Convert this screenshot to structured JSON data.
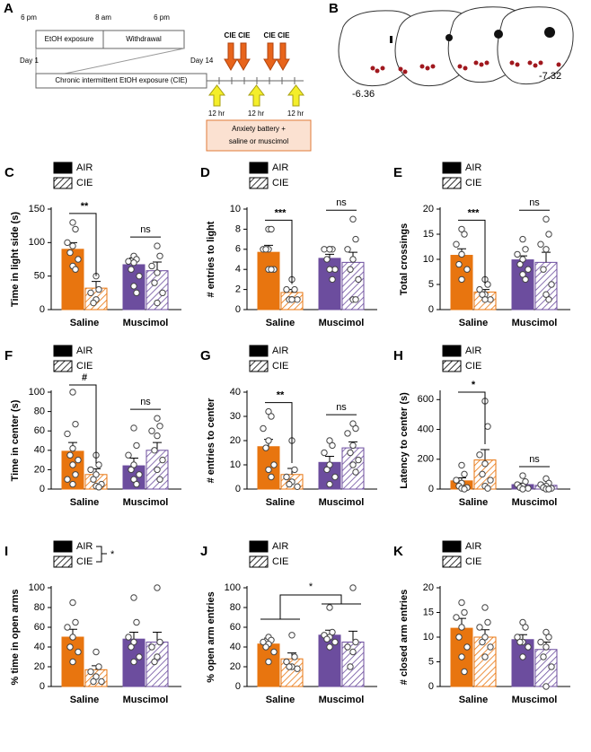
{
  "panel_a": {
    "letter": "A",
    "times": [
      "6 pm",
      "8 am",
      "6 pm"
    ],
    "phases": [
      "EtOH exposure",
      "Withdrawal"
    ],
    "day_start": "Day 1",
    "day_end": "Day 14",
    "cie_bar": "Chronic intermittent EtOH exposure (CIE)",
    "cie_labels": [
      "CIE CIE",
      "CIE CIE"
    ],
    "interval_labels": [
      "12 hr",
      "12 hr",
      "12 hr"
    ],
    "battery": [
      "Anxiety battery +",
      "saline or muscimol"
    ]
  },
  "panel_b": {
    "letter": "B",
    "coords": [
      "-6.36",
      "-7.32"
    ]
  },
  "chart_data": [
    {
      "type": "bar",
      "panel": "C",
      "ylabel": "Time in light side (s)",
      "categories": [
        "Saline",
        "Muscimol"
      ],
      "category_colors": [
        "#e8750f",
        "#6c4d9e"
      ],
      "ylim": [
        0,
        150
      ],
      "yticks": [
        0,
        50,
        100,
        150
      ],
      "significance": [
        "**",
        "ns"
      ],
      "series": [
        {
          "name": "AIR",
          "color": "#000000",
          "hatch": false,
          "values": [
            90,
            67
          ],
          "errors": [
            10,
            10
          ],
          "points": [
            [
              130,
              120,
              100,
              95,
              85,
              75,
              65,
              60
            ],
            [
              80,
              75,
              72,
              70,
              60,
              50,
              35,
              25
            ]
          ]
        },
        {
          "name": "CIE",
          "color": "#000000",
          "hatch": true,
          "values": [
            32,
            58
          ],
          "errors": [
            10,
            13
          ],
          "points": [
            [
              50,
              30,
              25,
              15,
              10
            ],
            [
              95,
              80,
              65,
              55,
              40,
              25,
              10
            ]
          ]
        }
      ]
    },
    {
      "type": "bar",
      "panel": "D",
      "ylabel": "# entries to light",
      "categories": [
        "Saline",
        "Muscimol"
      ],
      "category_colors": [
        "#e8750f",
        "#6c4d9e"
      ],
      "ylim": [
        0,
        10
      ],
      "yticks": [
        0,
        2,
        4,
        6,
        8,
        10
      ],
      "significance": [
        "***",
        "ns"
      ],
      "series": [
        {
          "name": "AIR",
          "color": "#000000",
          "hatch": false,
          "values": [
            5.7,
            5.1
          ],
          "errors": [
            0.7,
            0.4
          ],
          "points": [
            [
              8,
              8,
              6,
              6,
              6,
              4,
              4,
              4
            ],
            [
              6,
              6,
              6,
              6,
              5,
              4,
              4,
              3
            ]
          ]
        },
        {
          "name": "CIE",
          "color": "#000000",
          "hatch": true,
          "values": [
            1.7,
            4.7
          ],
          "errors": [
            0.3,
            1
          ],
          "points": [
            [
              3,
              2,
              2,
              1,
              1,
              1,
              1
            ],
            [
              9,
              7,
              6,
              5,
              4,
              3,
              1,
              1
            ]
          ]
        }
      ]
    },
    {
      "type": "bar",
      "panel": "E",
      "ylabel": "Total crossings",
      "categories": [
        "Saline",
        "Muscimol"
      ],
      "category_colors": [
        "#e8750f",
        "#6c4d9e"
      ],
      "ylim": [
        0,
        20
      ],
      "yticks": [
        0,
        5,
        10,
        15,
        20
      ],
      "significance": [
        "***",
        "ns"
      ],
      "series": [
        {
          "name": "AIR",
          "color": "#000000",
          "hatch": false,
          "values": [
            10.8,
            9.9
          ],
          "errors": [
            1.3,
            0.8
          ],
          "points": [
            [
              16,
              15,
              13,
              11,
              9,
              8,
              6
            ],
            [
              14,
              12,
              11,
              10,
              9,
              8,
              7,
              6
            ]
          ]
        },
        {
          "name": "CIE",
          "color": "#000000",
          "hatch": true,
          "values": [
            3.5,
            9.4
          ],
          "errors": [
            0.5,
            2
          ],
          "points": [
            [
              6,
              5,
              4,
              3,
              3,
              2,
              2
            ],
            [
              18,
              15,
              13,
              12,
              8,
              5,
              3,
              2
            ]
          ]
        }
      ]
    },
    {
      "type": "bar",
      "panel": "F",
      "ylabel": "Time in center (s)",
      "categories": [
        "Saline",
        "Muscimol"
      ],
      "category_colors": [
        "#e8750f",
        "#6c4d9e"
      ],
      "ylim": [
        0,
        100
      ],
      "yticks": [
        0,
        20,
        40,
        60,
        80,
        100
      ],
      "significance": [
        "#",
        "ns"
      ],
      "series": [
        {
          "name": "AIR",
          "color": "#000000",
          "hatch": false,
          "values": [
            39,
            24
          ],
          "errors": [
            9,
            8
          ],
          "points": [
            [
              100,
              67,
              57,
              42,
              35,
              30,
              25,
              15,
              10,
              5
            ],
            [
              63,
              45,
              35,
              25,
              20,
              15,
              10,
              5
            ]
          ]
        },
        {
          "name": "CIE",
          "color": "#000000",
          "hatch": true,
          "values": [
            15,
            40
          ],
          "errors": [
            6,
            8
          ],
          "points": [
            [
              35,
              25,
              20,
              15,
              10,
              5,
              3,
              2
            ],
            [
              73,
              65,
              60,
              55,
              40,
              30,
              20,
              10
            ]
          ]
        }
      ]
    },
    {
      "type": "bar",
      "panel": "G",
      "ylabel": "# entries to center",
      "categories": [
        "Saline",
        "Muscimol"
      ],
      "category_colors": [
        "#e8750f",
        "#6c4d9e"
      ],
      "ylim": [
        0,
        40
      ],
      "yticks": [
        0,
        10,
        20,
        30,
        40
      ],
      "significance": [
        "**",
        "ns"
      ],
      "series": [
        {
          "name": "AIR",
          "color": "#000000",
          "hatch": false,
          "values": [
            17.5,
            11
          ],
          "errors": [
            3,
            2.5
          ],
          "points": [
            [
              32,
              30,
              25,
              20,
              17,
              10,
              8,
              5
            ],
            [
              20,
              18,
              15,
              10,
              8,
              5,
              2
            ]
          ]
        },
        {
          "name": "CIE",
          "color": "#000000",
          "hatch": true,
          "values": [
            6,
            17
          ],
          "errors": [
            2.5,
            2.5
          ],
          "points": [
            [
              20,
              8,
              5,
              3,
              2,
              1
            ],
            [
              27,
              25,
              23,
              18,
              15,
              12,
              10,
              7
            ]
          ]
        }
      ]
    },
    {
      "type": "bar",
      "panel": "H",
      "ylabel": "Latency to center (s)",
      "categories": [
        "Saline",
        "Muscimol"
      ],
      "category_colors": [
        "#e8750f",
        "#6c4d9e"
      ],
      "ylim": [
        0,
        650
      ],
      "yticks": [
        0,
        200,
        400,
        600
      ],
      "significance": [
        "*",
        "ns"
      ],
      "series": [
        {
          "name": "AIR",
          "color": "#000000",
          "hatch": false,
          "values": [
            55,
            30
          ],
          "errors": [
            20,
            10
          ],
          "points": [
            [
              160,
              100,
              60,
              40,
              20,
              10,
              5,
              0
            ],
            [
              90,
              50,
              30,
              20,
              10,
              5,
              0
            ]
          ]
        },
        {
          "name": "CIE",
          "color": "#000000",
          "hatch": true,
          "values": [
            195,
            25
          ],
          "errors": [
            70,
            10
          ],
          "points": [
            [
              590,
              420,
              230,
              170,
              100,
              60,
              20,
              5
            ],
            [
              70,
              40,
              30,
              20,
              10,
              5,
              0,
              0
            ]
          ]
        }
      ]
    },
    {
      "type": "bar",
      "panel": "I",
      "ylabel": "% time in open arms",
      "categories": [
        "Saline",
        "Muscimol"
      ],
      "category_colors": [
        "#e8750f",
        "#6c4d9e"
      ],
      "ylim": [
        0,
        100
      ],
      "yticks": [
        0,
        20,
        40,
        60,
        80,
        100
      ],
      "legend_significance": "*",
      "series": [
        {
          "name": "AIR",
          "color": "#000000",
          "hatch": false,
          "values": [
            50,
            48
          ],
          "errors": [
            8,
            7
          ],
          "points": [
            [
              85,
              65,
              60,
              50,
              40,
              35,
              25
            ],
            [
              90,
              65,
              50,
              45,
              40,
              30,
              25
            ]
          ]
        },
        {
          "name": "CIE",
          "color": "#000000",
          "hatch": true,
          "values": [
            17,
            45
          ],
          "errors": [
            4,
            10
          ],
          "points": [
            [
              35,
              20,
              15,
              10,
              5,
              5
            ],
            [
              100,
              45,
              40,
              30,
              25
            ]
          ]
        }
      ]
    },
    {
      "type": "bar",
      "panel": "J",
      "ylabel": "% open arm entries",
      "categories": [
        "Saline",
        "Muscimol"
      ],
      "category_colors": [
        "#e8750f",
        "#6c4d9e"
      ],
      "ylim": [
        0,
        100
      ],
      "yticks": [
        0,
        20,
        40,
        60,
        80,
        100
      ],
      "group_significance": "*",
      "series": [
        {
          "name": "AIR",
          "color": "#000000",
          "hatch": false,
          "values": [
            43,
            52
          ],
          "errors": [
            6,
            5
          ],
          "points": [
            [
              50,
              47,
              45,
              43,
              40,
              35,
              25
            ],
            [
              80,
              55,
              52,
              50,
              48,
              45,
              40
            ]
          ]
        },
        {
          "name": "CIE",
          "color": "#000000",
          "hatch": true,
          "values": [
            28,
            45
          ],
          "errors": [
            6,
            11
          ],
          "points": [
            [
              52,
              30,
              25,
              20,
              20,
              18
            ],
            [
              100,
              45,
              40,
              35,
              20
            ]
          ]
        }
      ]
    },
    {
      "type": "bar",
      "panel": "K",
      "ylabel": "# closed arm entries",
      "categories": [
        "Saline",
        "Muscimol"
      ],
      "category_colors": [
        "#e8750f",
        "#6c4d9e"
      ],
      "ylim": [
        0,
        20
      ],
      "yticks": [
        0,
        5,
        10,
        15,
        20
      ],
      "series": [
        {
          "name": "AIR",
          "color": "#000000",
          "hatch": false,
          "values": [
            11.8,
            9.5
          ],
          "errors": [
            2,
            1
          ],
          "points": [
            [
              17,
              15,
              14,
              12,
              10,
              8,
              6,
              3
            ],
            [
              13,
              12,
              10,
              9,
              9,
              8,
              6
            ]
          ]
        },
        {
          "name": "CIE",
          "color": "#000000",
          "hatch": true,
          "values": [
            10,
            7.5
          ],
          "errors": [
            1.5,
            1.5
          ],
          "points": [
            [
              16,
              13,
              12,
              10,
              9,
              8,
              6
            ],
            [
              11,
              10,
              9,
              8,
              6,
              4,
              0
            ]
          ]
        }
      ]
    }
  ]
}
